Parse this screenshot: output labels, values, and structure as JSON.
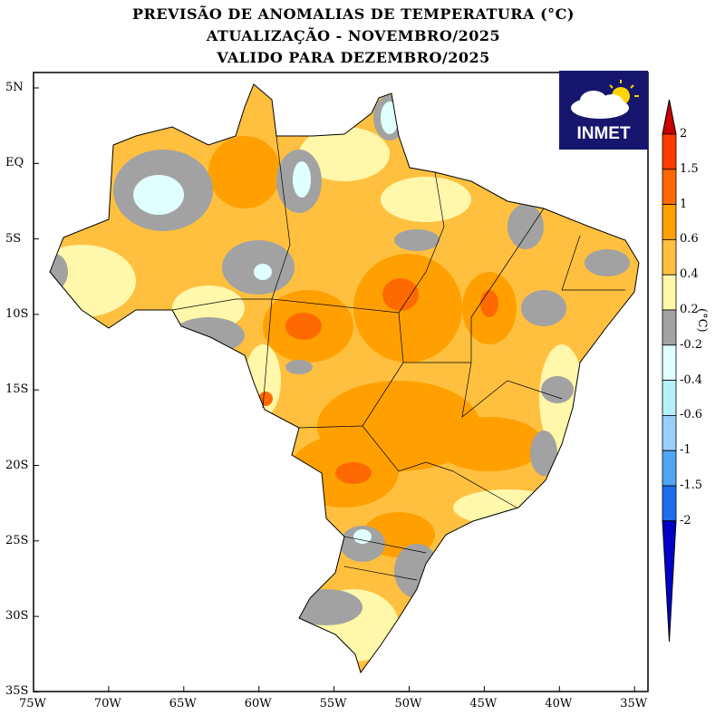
{
  "title": {
    "line1": "PREVISÃO DE ANOMALIAS DE TEMPERATURA (°C)",
    "line2": "ATUALIZAÇÃO - NOVEMBRO/2025",
    "line3": "VALIDO PARA DEZEMBRO/2025"
  },
  "logo": {
    "text": "INMET"
  },
  "map": {
    "region": "Brazil",
    "variable": "temperature anomaly forecast",
    "lat_ticks": [
      "5N",
      "EQ",
      "5S",
      "10S",
      "15S",
      "20S",
      "25S",
      "30S",
      "35S"
    ],
    "lon_ticks": [
      "75W",
      "70W",
      "65W",
      "60W",
      "55W",
      "50W",
      "45W",
      "40W",
      "35W"
    ],
    "lat_range": [
      -35,
      6
    ],
    "lon_range": [
      -75,
      -34
    ]
  },
  "legend": {
    "unit": "(°C)",
    "labels": [
      "2",
      "1.5",
      "1",
      "0.6",
      "0.4",
      "0.2",
      "-0.2",
      "-0.4",
      "-0.6",
      "-1",
      "-1.5",
      "-2"
    ],
    "colors": [
      "#c80000",
      "#ff3a00",
      "#ff6a00",
      "#ffa000",
      "#ffc040",
      "#fff7aa",
      "#a2a2a2",
      "#e0ffff",
      "#b4f0f8",
      "#98d0fa",
      "#50a6f4",
      "#1e6eeb",
      "#0000c8"
    ]
  }
}
